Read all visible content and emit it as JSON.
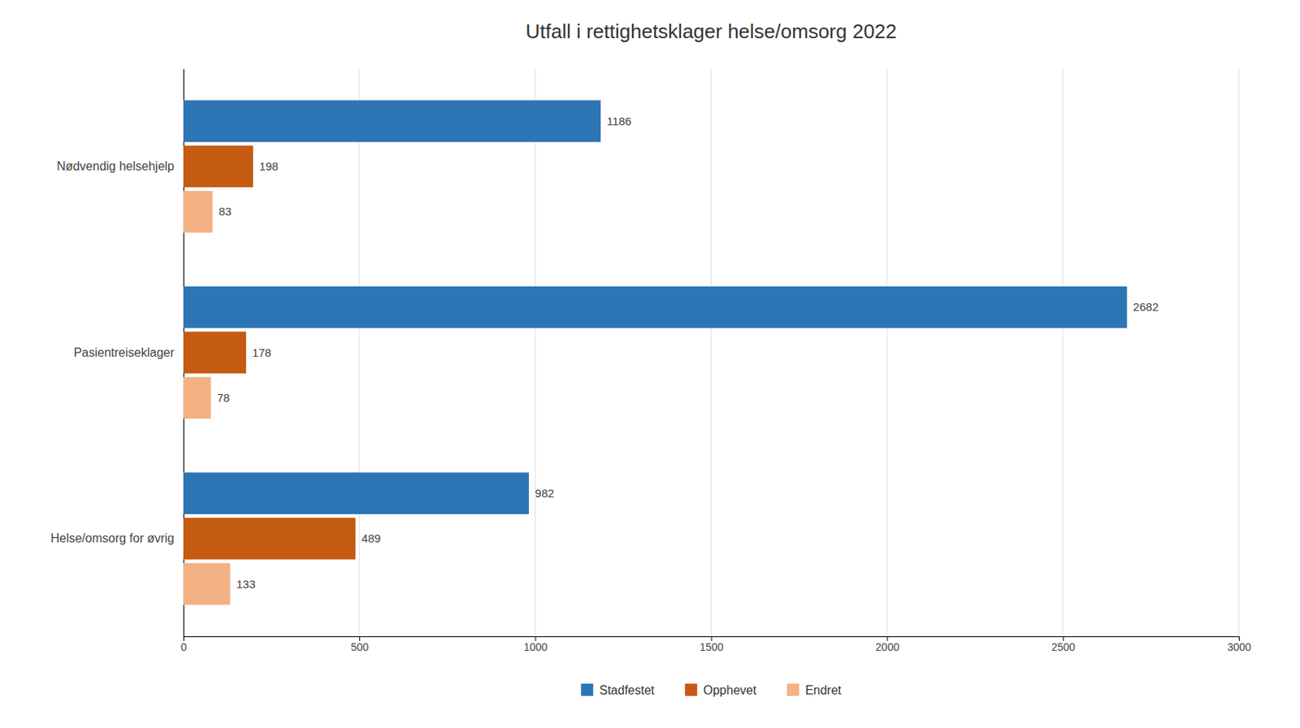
{
  "chart_data": {
    "type": "bar",
    "orientation": "horizontal",
    "title": "Utfall i rettighetsklager helse/omsorg 2022",
    "categories": [
      "Nødvendig helsehjelp",
      "Pasientreiseklager",
      "Helse/omsorg for øvrig"
    ],
    "series": [
      {
        "name": "Stadfestet",
        "color": "#2E75B6",
        "values": [
          1186,
          2682,
          982
        ]
      },
      {
        "name": "Opphevet",
        "color": "#C55A11",
        "values": [
          198,
          178,
          489
        ]
      },
      {
        "name": "Endret",
        "color": "#F4B183",
        "values": [
          83,
          78,
          133
        ]
      }
    ],
    "xlim": [
      0,
      3000
    ],
    "xticks": [
      0,
      500,
      1000,
      1500,
      2000,
      2500,
      3000
    ],
    "grid": true,
    "legend": "bottom",
    "data_labels": true
  }
}
